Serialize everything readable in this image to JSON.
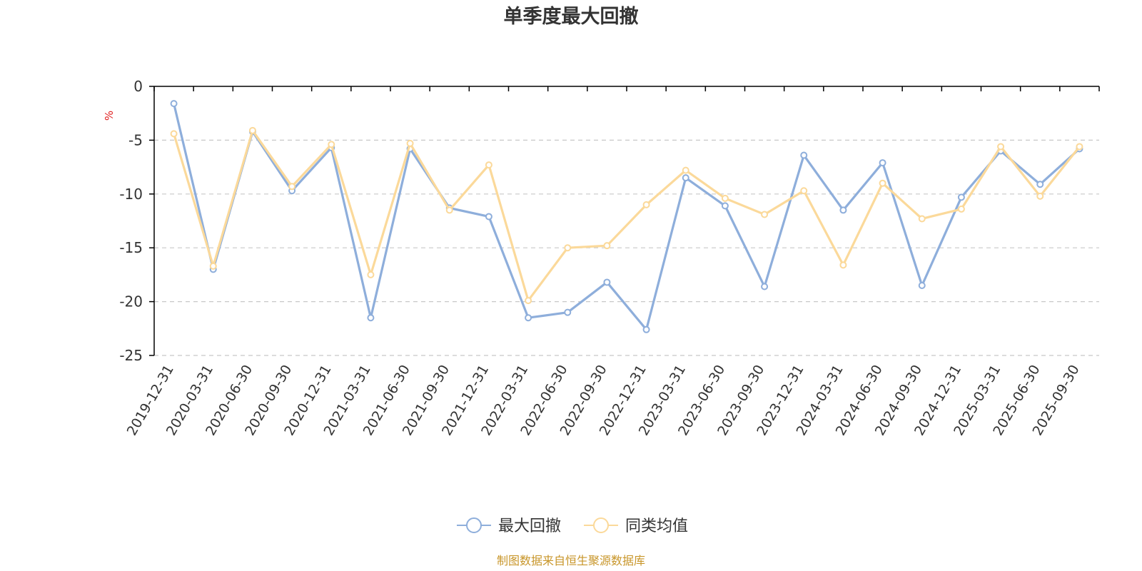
{
  "chart_data": {
    "type": "line",
    "title": "单季度最大回撤",
    "ylabel": "%",
    "xlabel": "",
    "ylim": [
      -25,
      0
    ],
    "yticks": [
      0,
      -5,
      -10,
      -15,
      -20,
      -25
    ],
    "grid": true,
    "legend_position": "bottom-center",
    "categories": [
      "2019-12-31",
      "2020-03-31",
      "2020-06-30",
      "2020-09-30",
      "2020-12-31",
      "2021-03-31",
      "2021-06-30",
      "2021-09-30",
      "2021-12-31",
      "2022-03-31",
      "2022-06-30",
      "2022-09-30",
      "2022-12-31",
      "2023-03-31",
      "2023-06-30",
      "2023-09-30",
      "2023-12-31",
      "2024-03-31",
      "2024-06-30",
      "2024-09-30",
      "2024-12-31",
      "2025-03-31",
      "2025-06-30",
      "2025-09-30"
    ],
    "series": [
      {
        "name": "最大回撤",
        "color": "#8eaedb",
        "values": [
          -1.6,
          -17.0,
          -4.2,
          -9.7,
          -5.7,
          -21.5,
          -5.8,
          -11.3,
          -12.1,
          -21.5,
          -21.0,
          -18.2,
          -22.6,
          -8.5,
          -11.1,
          -18.6,
          -6.4,
          -11.5,
          -7.1,
          -18.5,
          -10.3,
          -6.0,
          -9.1,
          -5.8
        ]
      },
      {
        "name": "同类均值",
        "color": "#fbd99a",
        "values": [
          -4.4,
          -16.7,
          -4.1,
          -9.3,
          -5.4,
          -17.5,
          -5.3,
          -11.5,
          -7.3,
          -19.9,
          -15.0,
          -14.8,
          -11.0,
          -7.8,
          -10.4,
          -11.9,
          -9.7,
          -16.6,
          -9.0,
          -12.3,
          -11.4,
          -5.6,
          -10.2,
          -5.6
        ]
      }
    ],
    "source_note": "制图数据来自恒生聚源数据库",
    "colors": {
      "title": "#333333",
      "ylabel": "#e02020",
      "axis": "#000000",
      "grid": "#c8c8c8",
      "tick_label": "#333333",
      "legend_text": "#333333",
      "source": "#c8962a"
    }
  }
}
